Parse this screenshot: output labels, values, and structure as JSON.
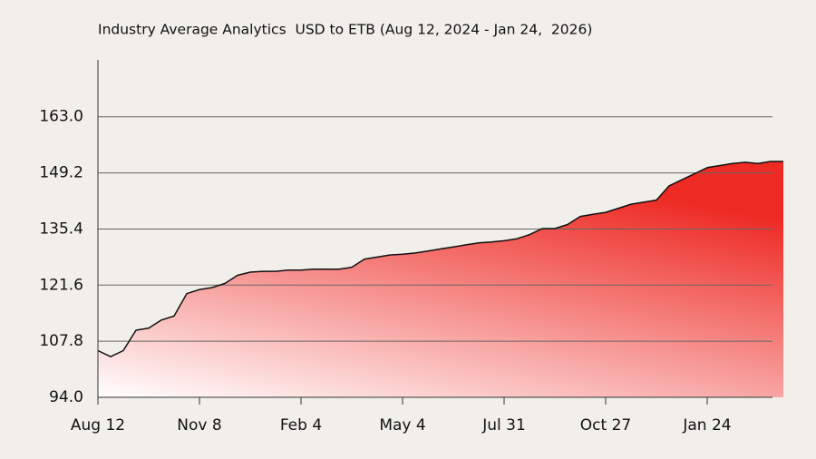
{
  "chart_data": {
    "type": "area",
    "title": "Industry Average Analytics  USD to ETB (Aug 12, 2024 - Jan 24,  2026)",
    "categories": [
      "Aug 12",
      null,
      null,
      null,
      null,
      null,
      null,
      null,
      "Nov 8",
      null,
      null,
      null,
      null,
      null,
      null,
      null,
      "Feb 4",
      null,
      null,
      null,
      null,
      null,
      null,
      null,
      "May 4",
      null,
      null,
      null,
      null,
      null,
      null,
      null,
      "Jul 31",
      null,
      null,
      null,
      null,
      null,
      null,
      null,
      "Oct 27",
      null,
      null,
      null,
      null,
      null,
      null,
      null,
      "Jan 24",
      null,
      null,
      null,
      null,
      null,
      null
    ],
    "values": [
      105.5,
      104,
      105.5,
      110.5,
      111,
      113,
      114,
      119.5,
      120.5,
      121,
      122,
      124,
      124.8,
      125,
      125,
      125.3,
      125.3,
      125.5,
      125.5,
      125.5,
      126,
      128,
      128.5,
      129,
      129.2,
      129.5,
      130,
      130.5,
      131,
      131.5,
      132,
      132.2,
      132.5,
      133,
      134,
      135.5,
      135.5,
      136.5,
      138.5,
      139,
      139.5,
      140.5,
      141.5,
      142,
      142.5,
      146,
      147.5,
      149,
      150.5,
      151,
      151.5,
      151.8,
      151.5,
      152,
      152
    ],
    "color": "#ee2a24",
    "ylim": [
      94,
      177
    ],
    "yticks": [
      {
        "value": 94,
        "label": "94.0"
      },
      {
        "value": 107.8,
        "label": "107.8"
      },
      {
        "value": 121.6,
        "label": "121.6"
      },
      {
        "value": 135.4,
        "label": "135.4"
      },
      {
        "value": 149.2,
        "label": "149.2"
      },
      {
        "value": 163,
        "label": "163.0"
      }
    ],
    "grid": true
  }
}
